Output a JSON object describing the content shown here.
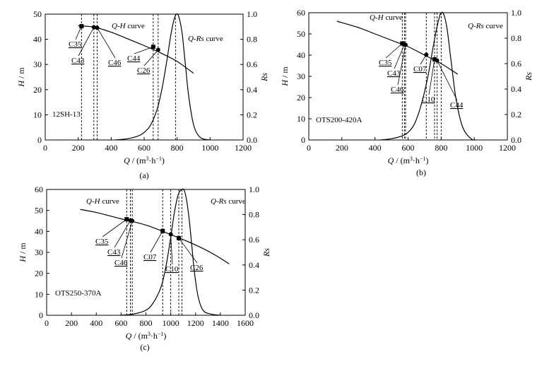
{
  "chart_data": [
    {
      "type": "line",
      "panel_label": "(a)",
      "model_label": "12SH-13",
      "xlabel": "Q / (m3·h−1)",
      "ylabel": "H / m",
      "y2label": "Rs",
      "xlim": [
        0,
        1200
      ],
      "ylim": [
        0,
        50
      ],
      "y2lim": [
        0,
        1.0
      ],
      "xticks": [
        0,
        200,
        400,
        600,
        800,
        1000,
        1200
      ],
      "yticks": [
        0,
        10,
        20,
        30,
        40,
        50
      ],
      "y2ticks": [
        0.0,
        0.2,
        0.4,
        0.6,
        0.8,
        1.0
      ],
      "curve_labels": {
        "qh": "Q-H curve",
        "qrs": "Q-Rs curve"
      },
      "series": [
        {
          "name": "Q-H curve",
          "axis": "left",
          "x": [
            200,
            300,
            400,
            500,
            600,
            700,
            800,
            900
          ],
          "y": [
            45.4,
            44.8,
            42.8,
            40.2,
            37.5,
            34.6,
            31.2,
            26.5
          ]
        },
        {
          "name": "Q-Rs curve",
          "axis": "right",
          "x": [
            420,
            500,
            560,
            600,
            640,
            680,
            710,
            740,
            760,
            780,
            795,
            810,
            830,
            850,
            870,
            900,
            940,
            1000
          ],
          "y": [
            0.0,
            0.01,
            0.03,
            0.06,
            0.12,
            0.25,
            0.42,
            0.65,
            0.82,
            0.95,
            1.0,
            0.98,
            0.85,
            0.6,
            0.35,
            0.12,
            0.02,
            0.0
          ]
        }
      ],
      "points": [
        {
          "label": "C35",
          "q": 220,
          "h": 45.2,
          "marker": "square"
        },
        {
          "label": "C43",
          "q": 295,
          "h": 44.8,
          "marker": "circle"
        },
        {
          "label": "C46",
          "q": 315,
          "h": 44.6,
          "marker": "circle"
        },
        {
          "label": "C44",
          "q": 655,
          "h": 37.0,
          "marker": "square"
        },
        {
          "label": "C26",
          "q": 685,
          "h": 35.8,
          "marker": "circle"
        }
      ],
      "vlines": [
        220,
        295,
        315,
        655,
        685,
        790
      ]
    },
    {
      "type": "line",
      "panel_label": "(b)",
      "model_label": "OTS200-420A",
      "xlabel": "Q / (m3·h−1)",
      "ylabel": "H / m",
      "y2label": "Rs",
      "xlim": [
        0,
        1200
      ],
      "ylim": [
        0,
        60
      ],
      "y2lim": [
        0,
        1.0
      ],
      "xticks": [
        0,
        200,
        400,
        600,
        800,
        1000,
        1200
      ],
      "yticks": [
        0,
        10,
        20,
        30,
        40,
        50,
        60
      ],
      "y2ticks": [
        0.0,
        0.2,
        0.4,
        0.6,
        0.8,
        1.0
      ],
      "curve_labels": {
        "qh": "Q-H curve",
        "qrs": "Q-Rs curve"
      },
      "series": [
        {
          "name": "Q-H curve",
          "axis": "left",
          "x": [
            170,
            300,
            400,
            500,
            600,
            700,
            800,
            900
          ],
          "y": [
            56,
            53,
            50,
            47,
            44,
            40,
            36,
            31
          ]
        },
        {
          "name": "Q-Rs curve",
          "axis": "right",
          "x": [
            430,
            500,
            560,
            600,
            640,
            680,
            720,
            750,
            770,
            790,
            800,
            815,
            835,
            860,
            890,
            930,
            980,
            1010
          ],
          "y": [
            0.0,
            0.01,
            0.03,
            0.06,
            0.13,
            0.28,
            0.5,
            0.72,
            0.86,
            0.97,
            1.0,
            0.99,
            0.88,
            0.62,
            0.32,
            0.1,
            0.01,
            0.0
          ]
        }
      ],
      "points": [
        {
          "label": "C35",
          "q": 565,
          "h": 45.5,
          "marker": "square"
        },
        {
          "label": "C43",
          "q": 578,
          "h": 45.0,
          "marker": "circle"
        },
        {
          "label": "C46",
          "q": 585,
          "h": 44.8,
          "marker": "circle"
        },
        {
          "label": "C07",
          "q": 710,
          "h": 40.2,
          "marker": "circle"
        },
        {
          "label": "C10",
          "q": 760,
          "h": 38.0,
          "marker": "square"
        },
        {
          "label": "C44",
          "q": 775,
          "h": 37.5,
          "marker": "circle"
        }
      ],
      "vlines": [
        565,
        578,
        585,
        710,
        760,
        775,
        800
      ]
    },
    {
      "type": "line",
      "panel_label": "(c)",
      "model_label": "OTS250-370A",
      "xlabel": "Q / (m3·h−1)",
      "ylabel": "H / m",
      "y2label": "Rs",
      "xlim": [
        0,
        1600
      ],
      "ylim": [
        0,
        60
      ],
      "y2lim": [
        0,
        1.0
      ],
      "xticks": [
        0,
        200,
        400,
        600,
        800,
        1000,
        1200,
        1400,
        1600
      ],
      "yticks": [
        0,
        10,
        20,
        30,
        40,
        50,
        60
      ],
      "y2ticks": [
        0.0,
        0.2,
        0.4,
        0.6,
        0.8,
        1.0
      ],
      "curve_labels": {
        "qh": "Q-H curve",
        "qrs": "Q-Rs curve"
      },
      "series": [
        {
          "name": "Q-H curve",
          "axis": "left",
          "x": [
            270,
            400,
            600,
            800,
            1000,
            1200,
            1350,
            1470
          ],
          "y": [
            50.5,
            49,
            46,
            43,
            38.5,
            33.5,
            29,
            24.5
          ]
        },
        {
          "name": "Q-Rs curve",
          "axis": "right",
          "x": [
            590,
            700,
            800,
            860,
            920,
            960,
            1000,
            1030,
            1060,
            1090,
            1110,
            1130,
            1150,
            1170,
            1190,
            1220,
            1260,
            1320,
            1400
          ],
          "y": [
            0.0,
            0.01,
            0.04,
            0.1,
            0.22,
            0.38,
            0.62,
            0.82,
            0.96,
            1.0,
            0.99,
            0.9,
            0.75,
            0.55,
            0.35,
            0.15,
            0.04,
            0.01,
            0.0
          ]
        }
      ],
      "points": [
        {
          "label": "C35",
          "q": 645,
          "h": 45.8,
          "marker": "square"
        },
        {
          "label": "C43",
          "q": 675,
          "h": 45.2,
          "marker": "circle"
        },
        {
          "label": "C46",
          "q": 690,
          "h": 45.0,
          "marker": "circle"
        },
        {
          "label": "C07",
          "q": 935,
          "h": 40.2,
          "marker": "square"
        },
        {
          "label": "C10",
          "q": 1000,
          "h": 38.6,
          "marker": "circle"
        },
        {
          "label": "C26",
          "q": 1065,
          "h": 36.8,
          "marker": "square"
        }
      ],
      "vlines": [
        645,
        675,
        690,
        935,
        1000,
        1065,
        1090
      ]
    }
  ]
}
